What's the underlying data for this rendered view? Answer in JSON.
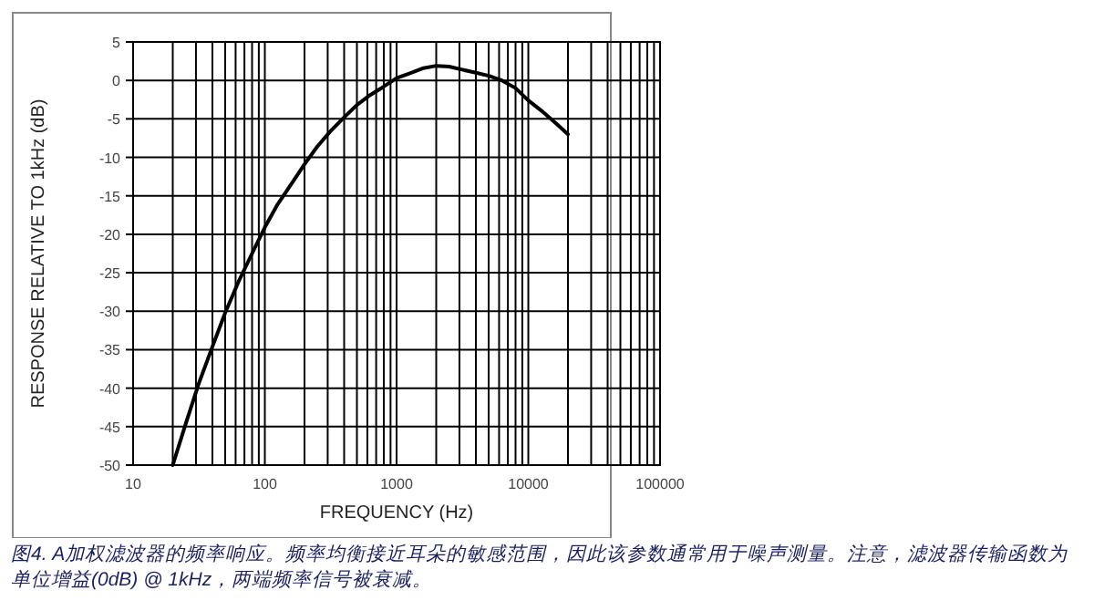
{
  "chart_data": {
    "type": "line",
    "xlabel": "FREQUENCY (Hz)",
    "ylabel": "RESPONSE RELATIVE TO 1kHz (dB)",
    "x": [
      20,
      25,
      31.5,
      40,
      50,
      63,
      80,
      100,
      125,
      160,
      200,
      250,
      315,
      400,
      500,
      630,
      800,
      1000,
      1250,
      1600,
      2000,
      2500,
      3150,
      4000,
      5000,
      6300,
      8000,
      10000,
      12500,
      16000,
      20000
    ],
    "series": [
      {
        "color": "#000000",
        "values": [
          -50,
          -44.7,
          -39.4,
          -34.6,
          -30.2,
          -26.2,
          -22.5,
          -19.1,
          -16.1,
          -13.4,
          -10.9,
          -8.6,
          -6.6,
          -4.8,
          -3.2,
          -1.9,
          -0.8,
          0.3,
          0.9,
          1.6,
          1.9,
          1.8,
          1.4,
          1.0,
          0.6,
          0,
          -1.0,
          -2.6,
          -3.9,
          -5.5,
          -7
        ]
      }
    ],
    "xlim": [
      10,
      100000
    ],
    "xticks": [
      10,
      100,
      1000,
      10000,
      100000
    ],
    "ylim": [
      -50,
      5
    ],
    "yticks": [
      5,
      0,
      -5,
      -10,
      -15,
      -20,
      -25,
      -30,
      -35,
      -40,
      -45,
      -50
    ],
    "log": "x",
    "grid": true,
    "annotations": [
      "图4. A加权滤波器的频率响应。频率均衡接近耳朵的敏感范围，因此该参数通常用于噪声测量。注意，滤波器传输函数为单位增益(0dB) @ 1kHz，两端频率信号被衰减。"
    ]
  }
}
